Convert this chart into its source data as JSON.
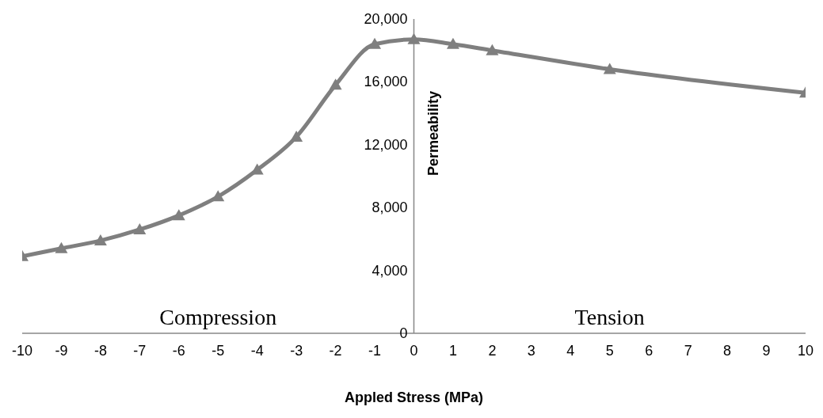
{
  "chart_data": {
    "type": "line",
    "xlabel": "Appled Stress (MPa)",
    "ylabel": "Permeability",
    "x": [
      -10,
      -9,
      -8,
      -7,
      -6,
      -5,
      -4,
      -3,
      -2,
      -1,
      0,
      1,
      2,
      5,
      10
    ],
    "series": [
      {
        "color": "#7f7f7f",
        "values": [
          4900,
          5400,
          5900,
          6600,
          7500,
          8700,
          10400,
          12500,
          15800,
          18400,
          18700,
          18400,
          18000,
          16800,
          15300
        ]
      }
    ],
    "xlim": [
      -10,
      10
    ],
    "xticks": [
      -10,
      -9,
      -8,
      -7,
      -6,
      -5,
      -4,
      -3,
      -2,
      -1,
      0,
      1,
      2,
      3,
      4,
      5,
      6,
      7,
      8,
      9,
      10
    ],
    "ylim": [
      0,
      20000
    ],
    "yticks": [
      {
        "value": 0,
        "label": "0"
      },
      {
        "value": 4000,
        "label": "4,000"
      },
      {
        "value": 8000,
        "label": "8,000"
      },
      {
        "value": 12000,
        "label": "12,000"
      },
      {
        "value": 16000,
        "label": "16,000"
      },
      {
        "value": 20000,
        "label": "20,000"
      }
    ],
    "annotations": [
      "Compression",
      "Tension"
    ],
    "grid": false,
    "legend": false,
    "marker": "triangle",
    "line_style": "solid"
  }
}
